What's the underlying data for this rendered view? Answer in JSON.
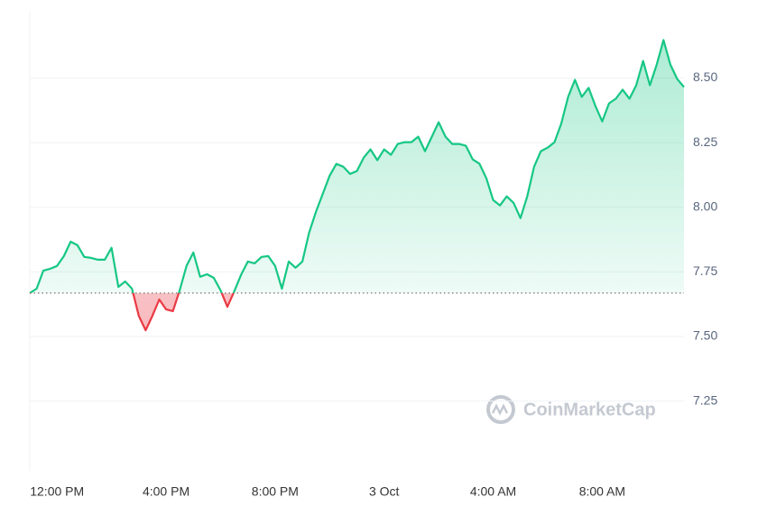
{
  "chart_data": {
    "type": "line",
    "watermark": "CoinMarketCap",
    "categories": [
      null,
      null,
      null,
      null,
      "12:00 PM",
      null,
      null,
      null,
      null,
      null,
      null,
      null,
      null,
      null,
      null,
      null,
      null,
      null,
      null,
      null,
      "4:00 PM",
      null,
      null,
      null,
      null,
      null,
      null,
      null,
      null,
      null,
      null,
      null,
      null,
      null,
      null,
      null,
      "8:00 PM",
      null,
      null,
      null,
      null,
      null,
      null,
      null,
      null,
      null,
      null,
      null,
      null,
      null,
      null,
      null,
      "3 Oct",
      null,
      null,
      null,
      null,
      null,
      null,
      null,
      null,
      null,
      null,
      null,
      null,
      null,
      null,
      null,
      "4:00 AM",
      null,
      null,
      null,
      null,
      null,
      null,
      null,
      null,
      null,
      null,
      null,
      null,
      null,
      null,
      null,
      "8:00 AM",
      null,
      null,
      null,
      null,
      null,
      null,
      null,
      null,
      null,
      null,
      null,
      null
    ],
    "values": [
      7.668,
      7.685,
      7.755,
      7.762,
      7.773,
      7.811,
      7.867,
      7.853,
      7.808,
      7.804,
      7.797,
      7.797,
      7.843,
      7.692,
      7.713,
      7.685,
      7.58,
      7.524,
      7.58,
      7.643,
      7.605,
      7.598,
      7.678,
      7.773,
      7.825,
      7.731,
      7.741,
      7.727,
      7.678,
      7.615,
      7.675,
      7.738,
      7.79,
      7.783,
      7.808,
      7.811,
      7.773,
      7.685,
      7.79,
      7.766,
      7.79,
      7.902,
      7.983,
      8.052,
      8.122,
      8.168,
      8.157,
      8.129,
      8.14,
      8.192,
      8.224,
      8.182,
      8.224,
      8.203,
      8.245,
      8.252,
      8.252,
      8.273,
      8.217,
      8.273,
      8.329,
      8.273,
      8.245,
      8.245,
      8.238,
      8.185,
      8.168,
      8.112,
      8.028,
      8.007,
      8.042,
      8.017,
      7.958,
      8.042,
      8.157,
      8.217,
      8.231,
      8.252,
      8.325,
      8.427,
      8.493,
      8.427,
      8.462,
      8.392,
      8.332,
      8.402,
      8.42,
      8.455,
      8.42,
      8.472,
      8.566,
      8.472,
      8.552,
      8.647,
      8.552,
      8.497,
      8.465
    ],
    "reference_value": 7.668,
    "color": "#16c784",
    "color_below": "#ea3943",
    "ylim": [
      6.98,
      8.76
    ],
    "yticks": [
      {
        "value": 7.25,
        "label": "7.25"
      },
      {
        "value": 7.5,
        "label": "7.50"
      },
      {
        "value": 7.75,
        "label": "7.75"
      },
      {
        "value": 8.0,
        "label": "8.00"
      },
      {
        "value": 8.25,
        "label": "8.25"
      },
      {
        "value": 8.5,
        "label": "8.50"
      }
    ],
    "grid": true
  }
}
